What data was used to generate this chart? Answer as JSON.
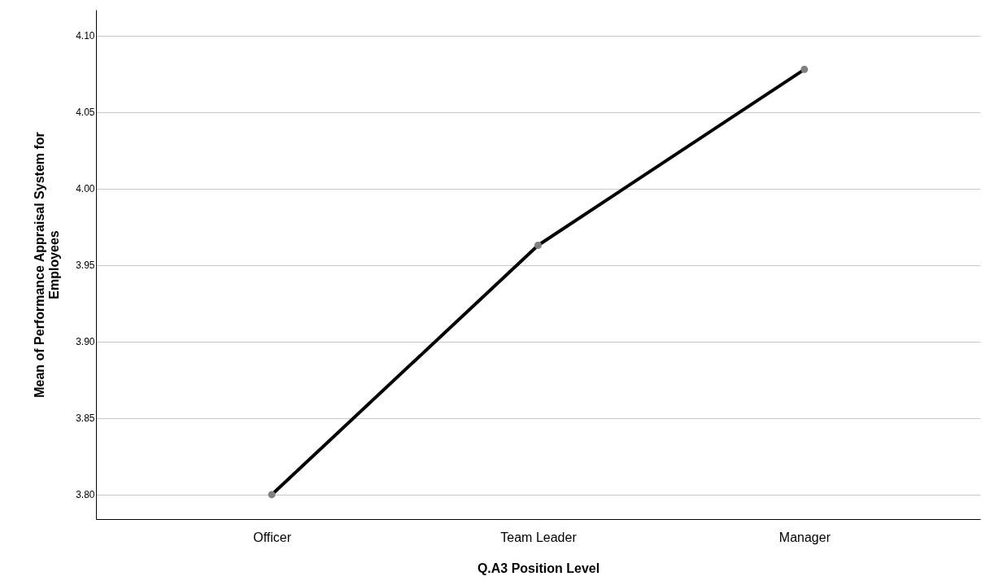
{
  "chart_data": {
    "type": "line",
    "xlabel": "Q.A3 Position Level",
    "ylabel": "Mean of Performance Appraisal System for Employees",
    "categories": [
      "Officer",
      "Team Leader",
      "Manager"
    ],
    "series": [
      {
        "color": "#000000",
        "values": [
          3.8,
          3.963,
          4.078
        ]
      }
    ],
    "ylim": [
      3.784,
      4.117
    ],
    "yticks": [
      {
        "value": 3.8,
        "label": "3.80"
      },
      {
        "value": 3.85,
        "label": "3.85"
      },
      {
        "value": 3.9,
        "label": "3.90"
      },
      {
        "value": 3.95,
        "label": "3.95"
      },
      {
        "value": 4.0,
        "label": "4.00"
      },
      {
        "value": 4.05,
        "label": "4.05"
      },
      {
        "value": 4.1,
        "label": "4.10"
      }
    ],
    "grid": "y",
    "marker": "circle",
    "line_style": "solid"
  }
}
